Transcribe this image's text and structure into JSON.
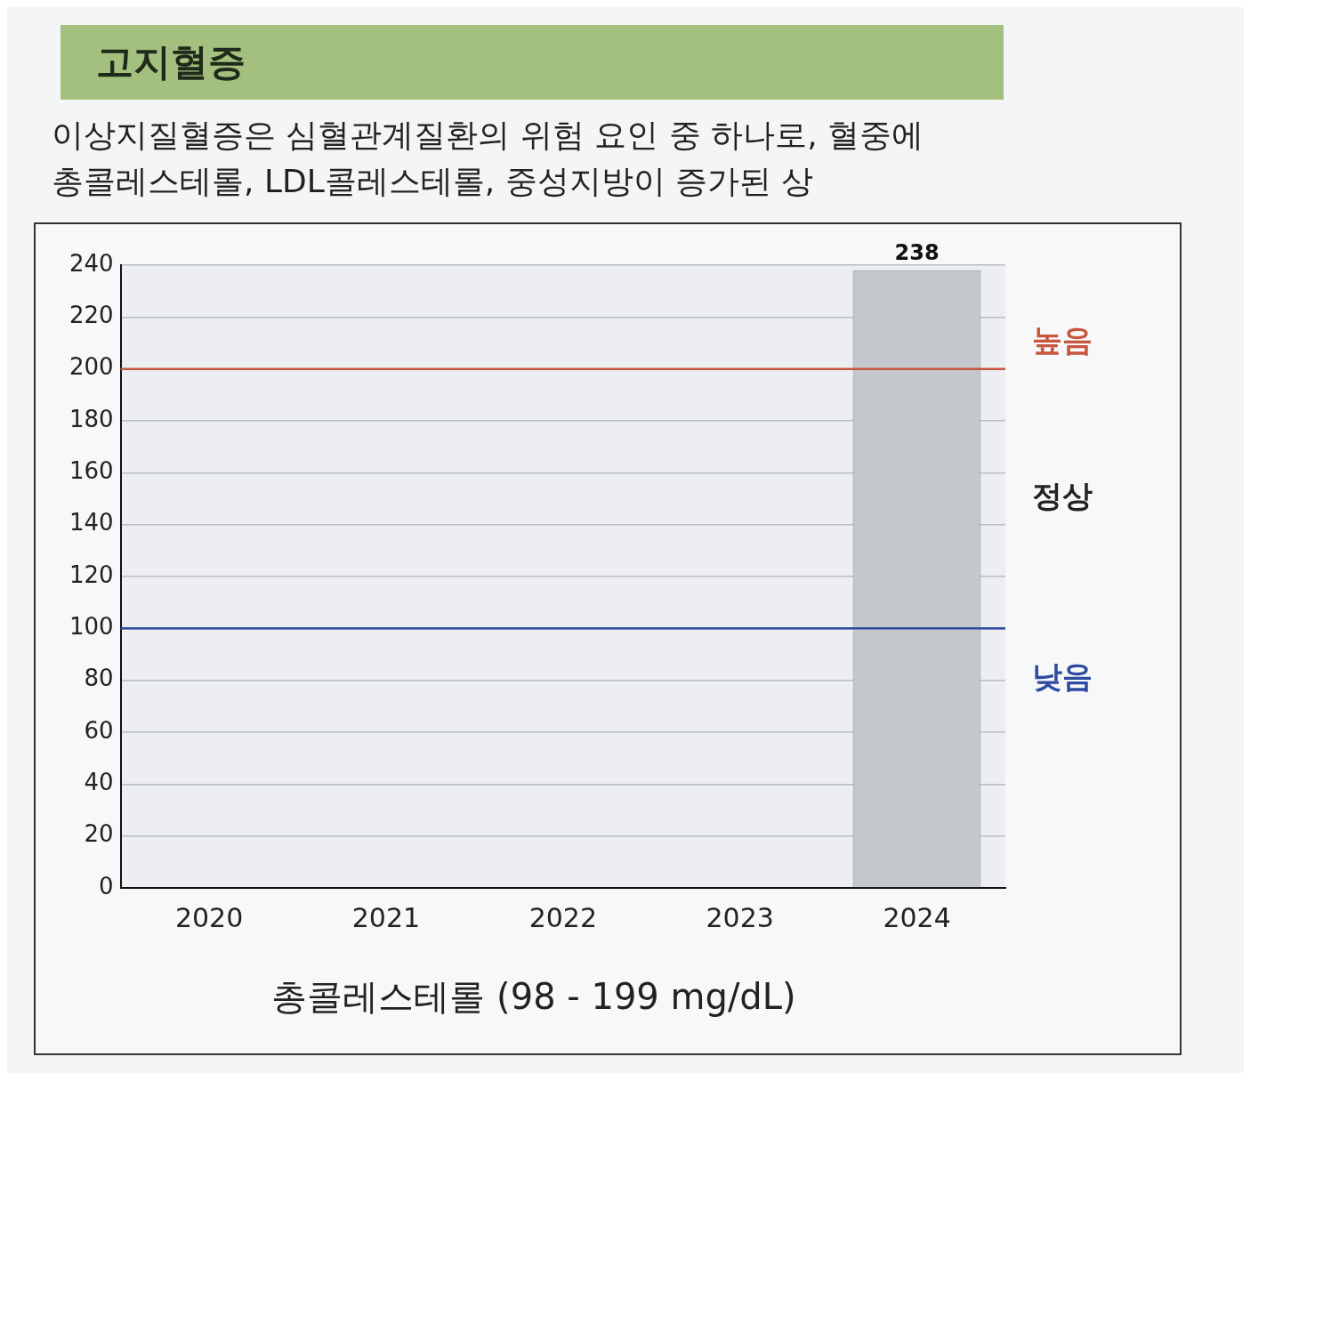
{
  "chart_data": {
    "type": "bar",
    "title": "총콜레스테롤 (98 - 199 mg/dL)",
    "annotations": [
      "고지혈증",
      "이상지질혈증은 심혈관계질환의 위험 요인 중 하나로, 혈중에 총콜레스테롤, LDL콜레스테롤, 중성지방이 증가된 상",
      "정상"
    ],
    "categories": [
      "2020",
      "2021",
      "2022",
      "2023",
      "2024"
    ],
    "values": [
      null,
      null,
      null,
      null,
      238
    ],
    "color": "#c4c8cd",
    "ylim": [
      0,
      240
    ],
    "yticks": [
      0,
      20,
      40,
      60,
      80,
      100,
      120,
      140,
      160,
      180,
      200,
      220,
      240
    ],
    "grid": "y",
    "data_labels": true,
    "ref_lines": [
      {
        "axis": "y",
        "value": 200,
        "label": "높음",
        "color": "#c8553d"
      },
      {
        "axis": "y",
        "value": 100,
        "label": "낮음",
        "color": "#2f4a9e"
      }
    ]
  }
}
